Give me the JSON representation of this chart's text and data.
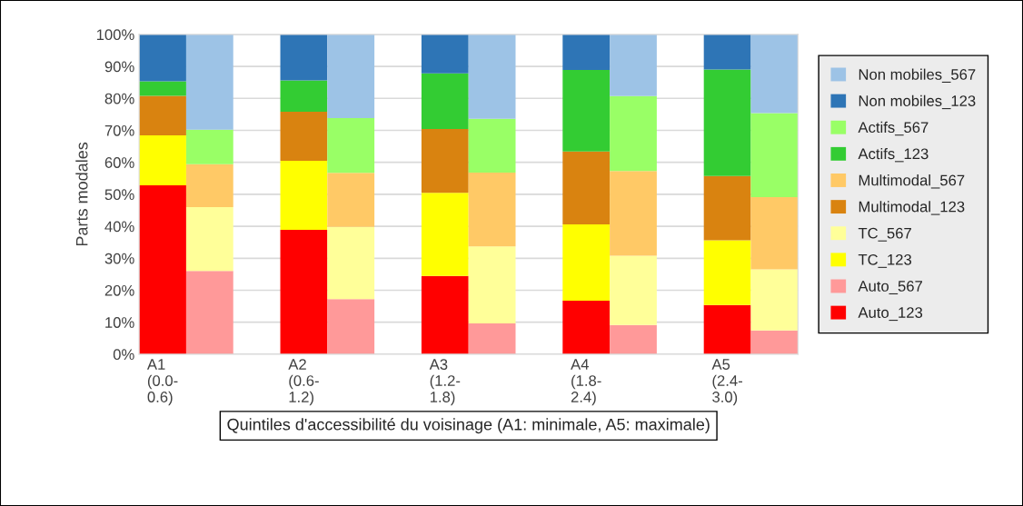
{
  "chart_data": {
    "type": "bar",
    "stacked": true,
    "categories": [
      "A1\n(0.0-\n0.6)",
      null,
      null,
      "A2\n(0.6-\n1.2)",
      null,
      null,
      "A3\n(1.2-\n1.8)",
      null,
      null,
      "A4\n(1.8-\n2.4)",
      null,
      null,
      "A5\n(2.4-\n3.0)",
      null
    ],
    "series": [
      {
        "name": "Auto_123",
        "color": "#ff0000",
        "values": [
          52.8,
          null,
          null,
          38.9,
          null,
          null,
          24.5,
          null,
          null,
          16.7,
          null,
          null,
          15.4,
          null
        ]
      },
      {
        "name": "Auto_567",
        "color": "#ff9999",
        "values": [
          null,
          26.0,
          null,
          null,
          17.2,
          null,
          null,
          9.6,
          null,
          null,
          9.1,
          null,
          null,
          7.4
        ]
      },
      {
        "name": "TC_123",
        "color": "#ffff00",
        "values": [
          15.6,
          null,
          null,
          21.6,
          null,
          null,
          26.0,
          null,
          null,
          23.9,
          null,
          null,
          20.2,
          null
        ]
      },
      {
        "name": "TC_567",
        "color": "#ffff99",
        "values": [
          null,
          20.0,
          null,
          null,
          22.6,
          null,
          null,
          24.1,
          null,
          null,
          21.7,
          null,
          null,
          19.1
        ]
      },
      {
        "name": "Multimodal_123",
        "color": "#d98310",
        "values": [
          12.4,
          null,
          null,
          15.3,
          null,
          null,
          19.9,
          null,
          null,
          22.8,
          null,
          null,
          20.1,
          null
        ]
      },
      {
        "name": "Multimodal_567",
        "color": "#ffc966",
        "values": [
          null,
          13.4,
          null,
          null,
          16.9,
          null,
          null,
          23.1,
          null,
          null,
          26.5,
          null,
          null,
          22.6
        ]
      },
      {
        "name": "Actifs_123",
        "color": "#33cc33",
        "values": [
          4.5,
          null,
          null,
          9.8,
          null,
          null,
          17.4,
          null,
          null,
          25.5,
          null,
          null,
          33.3,
          null
        ]
      },
      {
        "name": "Actifs_567",
        "color": "#99ff66",
        "values": [
          null,
          10.8,
          null,
          null,
          17.1,
          null,
          null,
          16.8,
          null,
          null,
          23.4,
          null,
          null,
          26.3
        ]
      },
      {
        "name": "Non mobiles_123",
        "color": "#2e75b6",
        "values": [
          14.7,
          null,
          null,
          14.4,
          null,
          null,
          12.2,
          null,
          null,
          11.1,
          null,
          null,
          11.0,
          null
        ]
      },
      {
        "name": "Non mobiles_567",
        "color": "#9dc3e6",
        "values": [
          null,
          29.8,
          null,
          null,
          26.2,
          null,
          null,
          26.4,
          null,
          null,
          19.3,
          null,
          null,
          24.6
        ]
      }
    ],
    "ylabel": "Parts modales",
    "xlabel": "Quintiles d'accessibilité du voisinage (A1: minimale, A5: maximale)",
    "ylim": [
      0,
      100
    ],
    "yticks": [
      {
        "value": 0,
        "label": "0%"
      },
      {
        "value": 10,
        "label": "10%"
      },
      {
        "value": 20,
        "label": "20%"
      },
      {
        "value": 30,
        "label": "30%"
      },
      {
        "value": 40,
        "label": "40%"
      },
      {
        "value": 50,
        "label": "50%"
      },
      {
        "value": 60,
        "label": "60%"
      },
      {
        "value": 70,
        "label": "70%"
      },
      {
        "value": 80,
        "label": "80%"
      },
      {
        "value": 90,
        "label": "90%"
      },
      {
        "value": 100,
        "label": "100%"
      }
    ],
    "grid": "y",
    "legend": "right"
  }
}
